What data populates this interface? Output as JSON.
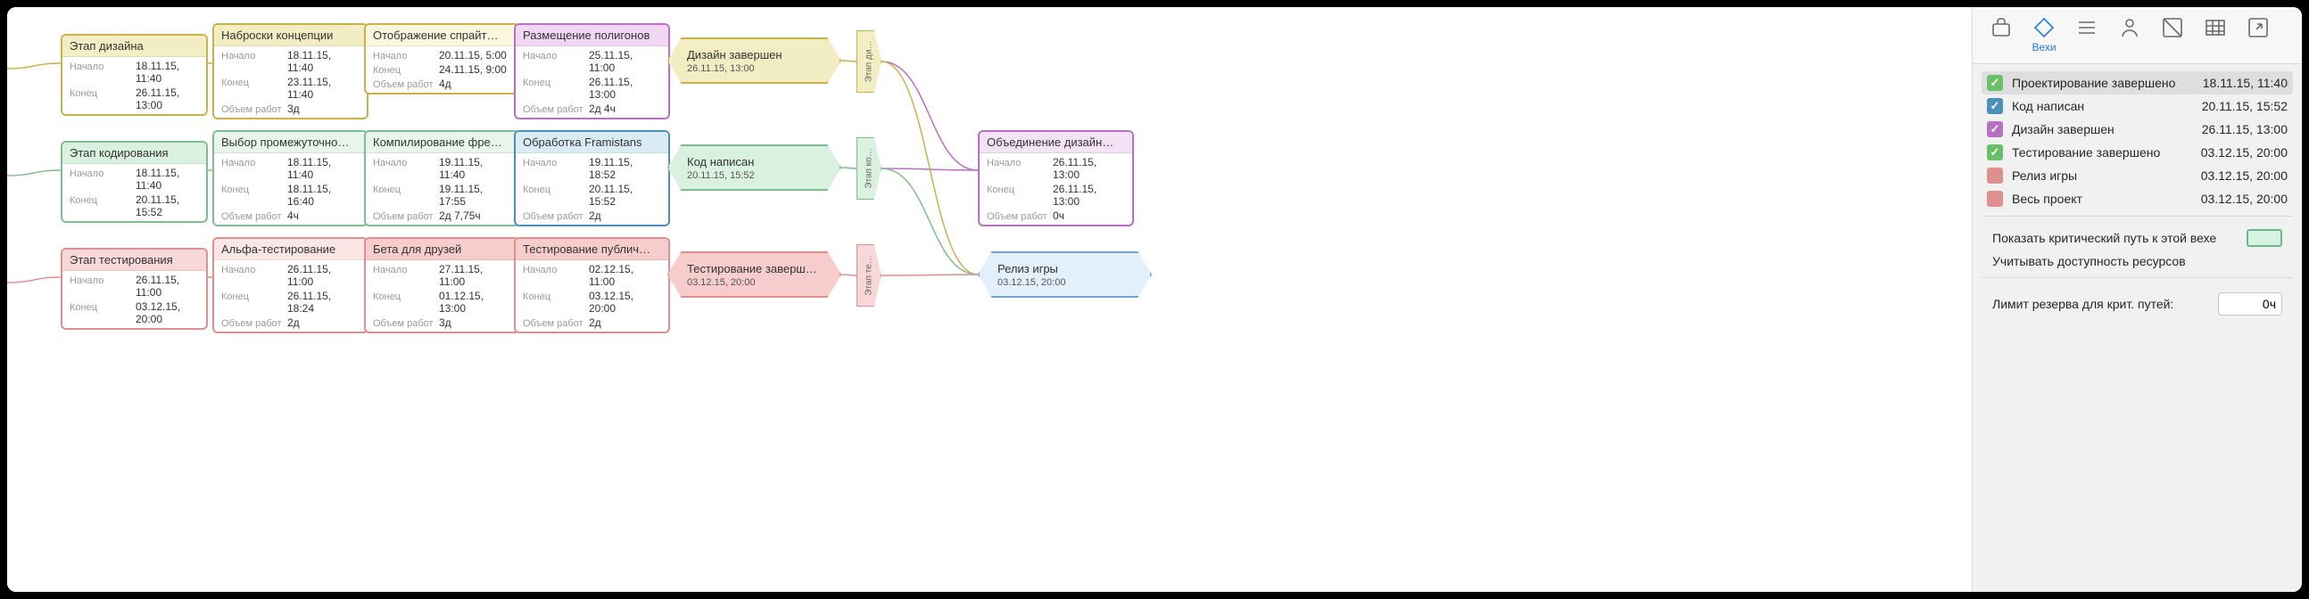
{
  "labels": {
    "start": "Начало",
    "end": "Конец",
    "work": "Объем работ"
  },
  "stages": {
    "design": {
      "title": "Этап дизайна",
      "start": "18.11.15, 11:40",
      "end": "26.11.15, 13:00",
      "stroke": "#c7b24e",
      "fill": "#f3edc3"
    },
    "code": {
      "title": "Этап кодирования",
      "start": "18.11.15, 11:40",
      "end": "20.11.15, 15:52",
      "stroke": "#7fbd90",
      "fill": "#dbf1e0"
    },
    "test": {
      "title": "Этап тестирования",
      "start": "26.11.15, 11:00",
      "end": "03.12.15, 20:00",
      "stroke": "#df8f8f",
      "fill": "#f7d7d7"
    }
  },
  "tasks": {
    "d1": {
      "title": "Наброски концепции",
      "start": "18.11.15, 11:40",
      "end": "23.11.15, 11:40",
      "work": "3д",
      "stroke": "#c7b24e",
      "fill": "#f3edc3"
    },
    "d2": {
      "title": "Отображение спрайт…",
      "start": "20.11.15, 5:00",
      "end": "24.11.15, 9:00",
      "work": "4д",
      "stroke": "#c7b24e",
      "fill": "#fbf7dd"
    },
    "d3": {
      "title": "Размещение полигонов",
      "start": "25.11.15, 11:00",
      "end": "26.11.15, 13:00",
      "work": "2д 4ч",
      "stroke": "#b96fc4",
      "fill": "#f1d7f4"
    },
    "c1": {
      "title": "Выбор промежуточно…",
      "start": "18.11.15, 11:40",
      "end": "18.11.15, 16:40",
      "work": "4ч",
      "stroke": "#7fbd90",
      "fill": "#e8f5ec"
    },
    "c2": {
      "title": "Компилирование фре…",
      "start": "19.11.15, 11:40",
      "end": "19.11.15, 17:55",
      "work": "2д 7,75ч",
      "stroke": "#7fbd90",
      "fill": "#e8f5ec"
    },
    "c3": {
      "title": "Обработка Framistans",
      "start": "19.11.15, 18:52",
      "end": "20.11.15, 15:52",
      "work": "2д",
      "stroke": "#4a90b8",
      "fill": "#d9ecf5"
    },
    "t1": {
      "title": "Альфа-тестирование",
      "start": "26.11.15, 11:00",
      "end": "26.11.15, 18:24",
      "work": "2д",
      "stroke": "#df8f8f",
      "fill": "#fbe6e6"
    },
    "t2": {
      "title": "Бета для друзей",
      "start": "27.11.15, 11:00",
      "end": "01.12.15, 13:00",
      "work": "3д",
      "stroke": "#df8f8f",
      "fill": "#f7cccc"
    },
    "t3": {
      "title": "Тестирование публич…",
      "start": "02.12.15, 11:00",
      "end": "03.12.15, 20:00",
      "work": "2д",
      "stroke": "#df8f8f",
      "fill": "#f7cccc"
    },
    "merge": {
      "title": "Объединение дизайн…",
      "start": "26.11.15, 13:00",
      "end": "26.11.15, 13:00",
      "work": "0ч",
      "stroke": "#b96fc4",
      "fill": "#f3e1f6"
    }
  },
  "milestones": {
    "designDone": {
      "title": "Дизайн завершен",
      "date": "26.11.15, 13:00",
      "stroke": "#c7b24e",
      "fill": "#f3edc3"
    },
    "codeDone": {
      "title": "Код написан",
      "date": "20.11.15, 15:52",
      "stroke": "#7fbd90",
      "fill": "#dbf1e0"
    },
    "testDone": {
      "title": "Тестирование заверш…",
      "date": "03.12.15, 20:00",
      "stroke": "#df8f8f",
      "fill": "#f7cccc"
    },
    "release": {
      "title": "Релиз игры",
      "date": "03.12.15, 20:00",
      "stroke": "#6fa6d6",
      "fill": "#e3effa"
    }
  },
  "flags": {
    "design": {
      "label": "Этап ди…",
      "fill": "#f3edc3",
      "stroke": "#c7b24e"
    },
    "code": {
      "label": "Этап ко…",
      "fill": "#dbf1e0",
      "stroke": "#7fbd90"
    },
    "test": {
      "label": "Этап те…",
      "fill": "#f7d7d7",
      "stroke": "#df8f8f"
    }
  },
  "panel": {
    "tabLabel": "Вехи",
    "milestones": [
      {
        "label": "Проектирование завершено",
        "date": "18.11.15, 11:40",
        "color": "#6abf69",
        "checked": true,
        "selected": true
      },
      {
        "label": "Код написан",
        "date": "20.11.15, 15:52",
        "color": "#4a90b8",
        "checked": true
      },
      {
        "label": "Дизайн завершен",
        "date": "26.11.15, 13:00",
        "color": "#b96fc4",
        "checked": true
      },
      {
        "label": "Тестирование завершено",
        "date": "03.12.15, 20:00",
        "color": "#6abf69",
        "checked": true
      },
      {
        "label": "Релиз игры",
        "date": "03.12.15, 20:00",
        "color": "#df8f8f",
        "checked": false
      },
      {
        "label": "Весь проект",
        "date": "03.12.15, 20:00",
        "color": "#df8f8f",
        "checked": false
      }
    ],
    "criticalPathLabel": "Показать критический путь к этой вехе",
    "availabilityLabel": "Учитывать доступность ресурсов",
    "limitLabel": "Лимит резерва для крит. путей:",
    "limitValue": "0ч"
  },
  "layout": {
    "col": {
      "stage": 60,
      "c1": 230,
      "c2": 400,
      "c3": 568,
      "ms": 740,
      "flag": 912,
      "merge": 1040,
      "release": 1040
    },
    "row": {
      "design": 30,
      "code": 150,
      "test": 270
    },
    "edgeColor": {
      "design": "#c7b24e",
      "code": "#7fbd90",
      "test": "#df8f8f",
      "purple": "#b96fc4"
    }
  }
}
